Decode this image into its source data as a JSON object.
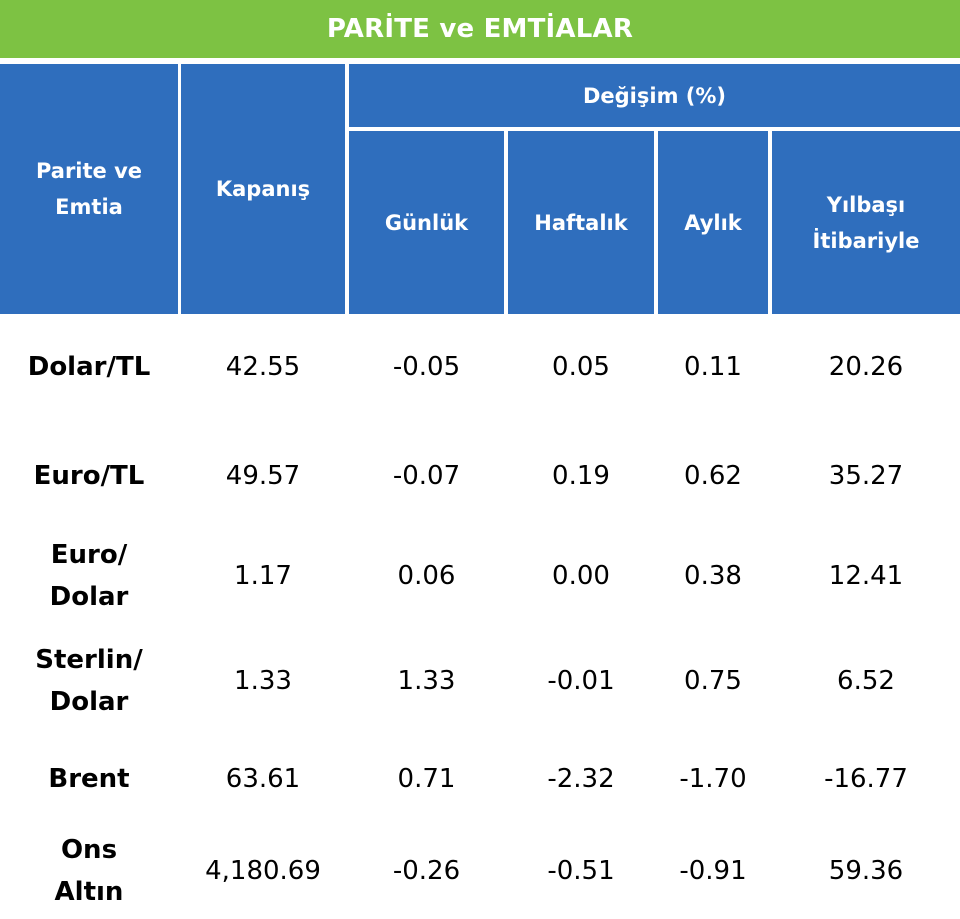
{
  "title": "PARİTE ve EMTİALAR",
  "headers": {
    "col1": "Parite ve Emtia",
    "col2": "Kapanış",
    "group": "Değişim (%)",
    "daily": "Günlük",
    "weekly": "Haftalık",
    "monthly": "Aylık",
    "ytd": "Yılbaşı İtibariyle"
  },
  "rows": [
    {
      "name": "Dolar/TL",
      "close": "42.55",
      "daily": "-0.05",
      "weekly": "0.05",
      "monthly": "0.11",
      "ytd": "20.26"
    },
    {
      "name": "Euro/TL",
      "close": "49.57",
      "daily": "-0.07",
      "weekly": "0.19",
      "monthly": "0.62",
      "ytd": "35.27"
    },
    {
      "name": "Euro/ Dolar",
      "close": "1.17",
      "daily": "0.06",
      "weekly": "0.00",
      "monthly": "0.38",
      "ytd": "12.41"
    },
    {
      "name": "Sterlin/ Dolar",
      "close": "1.33",
      "daily": "1.33",
      "weekly": "-0.01",
      "monthly": "0.75",
      "ytd": "6.52"
    },
    {
      "name": "Brent",
      "close": "63.61",
      "daily": "0.71",
      "weekly": "-2.32",
      "monthly": "-1.70",
      "ytd": "-16.77"
    },
    {
      "name": "Ons Altın",
      "close": "4,180.69",
      "daily": "-0.26",
      "weekly": "-0.51",
      "monthly": "-0.91",
      "ytd": "59.36"
    }
  ],
  "colors": {
    "title_bg": "#7dc243",
    "header_bg": "#2f6ebd"
  }
}
